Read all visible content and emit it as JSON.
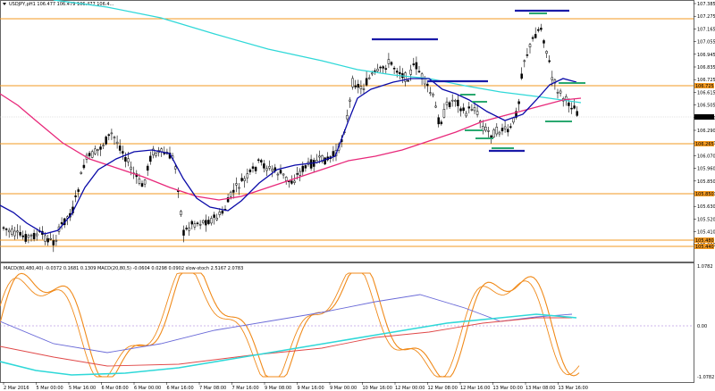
{
  "colors": {
    "candle": "#000000",
    "ma_fast": "#0a0aa8",
    "ma_mid": "#e8287a",
    "ma_slow": "#2fd8d8",
    "level": "#f39a22",
    "stoch": "#f08a1a",
    "macd_line": "#6a6ad8",
    "macd_signal": "#e04848",
    "macd_hist": "#2fd8d8",
    "marker_blue": "#1a1aa8",
    "marker_green": "#2aa870"
  },
  "main": {
    "symbol_header": "USDJPY,pH1 106.477 106.479 106.477 106.4...",
    "price_labels": [
      "107.385",
      "107.275",
      "107.165",
      "107.055",
      "106.945",
      "106.835",
      "106.725",
      "106.615",
      "106.505",
      "106.400",
      "106.290",
      "106.180",
      "106.070",
      "105.960",
      "105.850",
      "105.740",
      "105.630",
      "105.520",
      "105.410",
      "105.300"
    ],
    "current_price_label": "106.479",
    "level_labels": [
      "106.725",
      "106.265",
      "105.850",
      "105.480",
      "105.440"
    ]
  },
  "indicator": {
    "header": "MACD(80,480,40) -0.0372 0.1681 0.1309   MACD(20,80,5) -0.0604 0.0298 0.0902   slow-stoch 2.5167 2.0783",
    "scale_labels": [
      "1.0782",
      "0.00",
      "-1.0782"
    ]
  },
  "time_axis": {
    "labels": [
      "2 Mar 2016",
      "5 Mar 00:00",
      "5 Mar 16:00",
      "6 Mar 08:00",
      "6 Mar 00:00",
      "6 Mar 16:00",
      "7 Mar 08:00",
      "7 Mar 16:00",
      "9 Mar 08:00",
      "9 Mar 16:00",
      "9 Mar 00:00",
      "10 Mar 16:00",
      "12 Mar 00:00",
      "12 Mar 08:00",
      "12 Mar 16:00",
      "13 Mar 00:00",
      "13 Mar 08:00",
      "13 Mar 16:00"
    ]
  }
}
